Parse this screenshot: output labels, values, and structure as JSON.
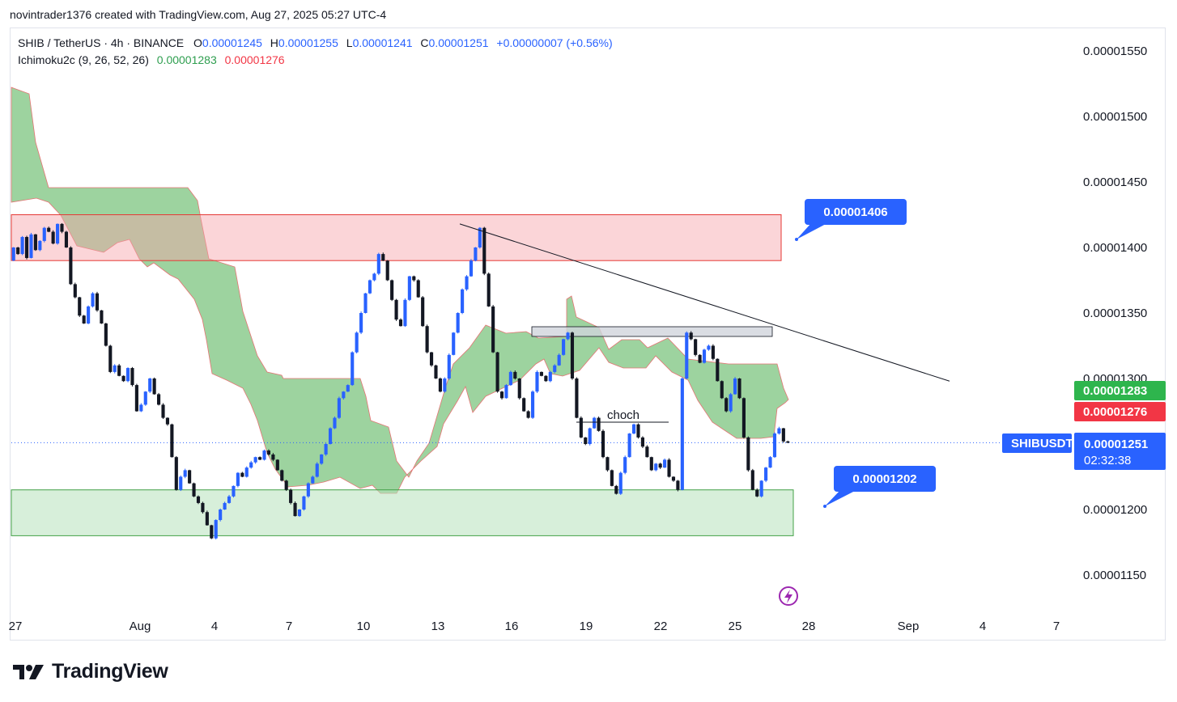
{
  "header": {
    "credit": "novintrader1376 created with TradingView.com, Aug 27, 2025 05:27 UTC-4"
  },
  "legend": {
    "symbol": "SHIB / TetherUS · 4h · BINANCE",
    "o_label": "O",
    "o_value": "0.00001245",
    "h_label": "H",
    "h_value": "0.00001255",
    "l_label": "L",
    "l_value": "0.00001241",
    "c_label": "C",
    "c_value": "0.00001251",
    "change": "+0.00000007 (+0.56%)",
    "indicator": "Ichimoku2c (9, 26, 52, 26)",
    "ind_green": "0.00001283",
    "ind_red": "0.00001276"
  },
  "footer": {
    "brand": "TradingView",
    "logo_icon": "tradingview-logo-icon"
  },
  "colors": {
    "up": "#2962ff",
    "down": "#131722",
    "cloud": "#4caf50",
    "supply": "#f7a1a8",
    "demand": "#b7e1bc",
    "tag_blue": "#2962ff",
    "tag_green": "#2eb54d",
    "tag_red": "#f23645"
  },
  "chart_data": {
    "type": "candlestick",
    "symbol_tag": "SHIBUSDT",
    "price_tag": "0.00001251",
    "countdown": "02:32:38",
    "cloud_tags": [
      "0.00001283",
      "0.00001276"
    ],
    "y_ticks": [
      "0.00001550",
      "0.00001500",
      "0.00001450",
      "0.00001400",
      "0.00001350",
      "0.00001300",
      "0.00001200",
      "0.00001150"
    ],
    "x_ticks": [
      "27",
      "Aug",
      "4",
      "7",
      "10",
      "13",
      "16",
      "19",
      "22",
      "25",
      "28",
      "Sep",
      "4",
      "7"
    ],
    "ylim": [
      1.12e-05,
      1.58e-05
    ],
    "annotations": {
      "top_target": "0.00001406",
      "bottom_target": "0.00001202",
      "choch_label": "choch"
    },
    "zones": {
      "supply": [
        1.39e-05,
        1.425e-05
      ],
      "demand": [
        1.18e-05,
        1.215e-05
      ],
      "small_box": [
        1.331e-05,
        1.338e-05
      ]
    },
    "trendline": {
      "from_price": 1.418e-05,
      "to_price": 1.298e-05
    },
    "current_price": 1.251e-05,
    "candles_close": [
      1.4e-05,
      1.395e-05,
      1.408e-05,
      1.392e-05,
      1.41e-05,
      1.398e-05,
      1.405e-05,
      1.415e-05,
      1.412e-05,
      1.403e-05,
      1.418e-05,
      1.412e-05,
      1.4e-05,
      1.372e-05,
      1.362e-05,
      1.348e-05,
      1.342e-05,
      1.355e-05,
      1.365e-05,
      1.352e-05,
      1.342e-05,
      1.325e-05,
      1.305e-05,
      1.31e-05,
      1.302e-05,
      1.298e-05,
      1.308e-05,
      1.295e-05,
      1.275e-05,
      1.28e-05,
      1.29e-05,
      1.3e-05,
      1.288e-05,
      1.28e-05,
      1.27e-05,
      1.265e-05,
      1.24e-05,
      1.215e-05,
      1.225e-05,
      1.23e-05,
      1.22e-05,
      1.21e-05,
      1.205e-05,
      1.198e-05,
      1.188e-05,
      1.178e-05,
      1.192e-05,
      1.2e-05,
      1.205e-05,
      1.21e-05,
      1.218e-05,
      1.228e-05,
      1.225e-05,
      1.232e-05,
      1.236e-05,
      1.24e-05,
      1.238e-05,
      1.245e-05,
      1.242e-05,
      1.238e-05,
      1.23e-05,
      1.222e-05,
      1.215e-05,
      1.205e-05,
      1.195e-05,
      1.2e-05,
      1.21e-05,
      1.22e-05,
      1.225e-05,
      1.235e-05,
      1.242e-05,
      1.25e-05,
      1.262e-05,
      1.27e-05,
      1.285e-05,
      1.29e-05,
      1.295e-05,
      1.32e-05,
      1.335e-05,
      1.35e-05,
      1.365e-05,
      1.375e-05,
      1.38e-05,
      1.395e-05,
      1.39e-05,
      1.375e-05,
      1.36e-05,
      1.345e-05,
      1.34e-05,
      1.36e-05,
      1.378e-05,
      1.375e-05,
      1.362e-05,
      1.34e-05,
      1.32e-05,
      1.31e-05,
      1.3e-05,
      1.29e-05,
      1.3e-05,
      1.318e-05,
      1.335e-05,
      1.35e-05,
      1.368e-05,
      1.378e-05,
      1.39e-05,
      1.4e-05,
      1.415e-05,
      1.38e-05,
      1.355e-05,
      1.32e-05,
      1.29e-05,
      1.285e-05,
      1.295e-05,
      1.305e-05,
      1.3e-05,
      1.285e-05,
      1.275e-05,
      1.27e-05,
      1.29e-05,
      1.305e-05,
      1.302e-05,
      1.298e-05,
      1.305e-05,
      1.31e-05,
      1.318e-05,
      1.33e-05,
      1.335e-05,
      1.3e-05,
      1.27e-05,
      1.255e-05,
      1.25e-05,
      1.262e-05,
      1.27e-05,
      1.26e-05,
      1.24e-05,
      1.23e-05,
      1.218e-05,
      1.212e-05,
      1.228e-05,
      1.24e-05,
      1.258e-05,
      1.265e-05,
      1.255e-05,
      1.248e-05,
      1.24e-05,
      1.23e-05,
      1.235e-05,
      1.232e-05,
      1.238e-05,
      1.225e-05,
      1.222e-05,
      1.215e-05,
      1.3e-05,
      1.335e-05,
      1.33e-05,
      1.318e-05,
      1.312e-05,
      1.322e-05,
      1.325e-05,
      1.315e-05,
      1.298e-05,
      1.285e-05,
      1.275e-05,
      1.288e-05,
      1.3e-05,
      1.285e-05,
      1.255e-05,
      1.23e-05,
      1.215e-05,
      1.21e-05,
      1.222e-05,
      1.232e-05,
      1.24e-05,
      1.258e-05,
      1.262e-05,
      1.252e-05,
      1.251e-05
    ]
  }
}
